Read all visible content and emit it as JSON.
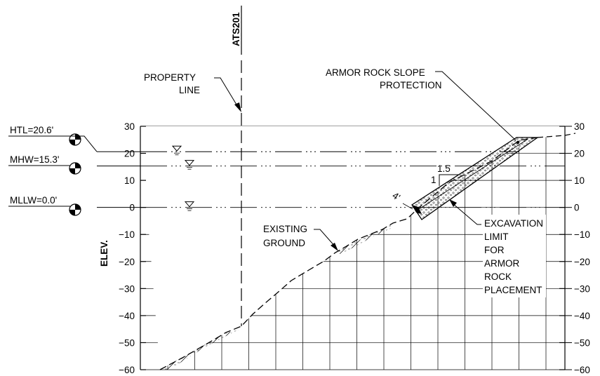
{
  "section_id": "ATS201",
  "axis": {
    "label": "ELEV.",
    "ticks": [
      30,
      20,
      10,
      0,
      -10,
      -20,
      -30,
      -40,
      -50,
      -60
    ],
    "tick_labels": [
      "30",
      "20",
      "10",
      "0",
      "−10",
      "−20",
      "−30",
      "−40",
      "−50",
      "−60"
    ],
    "min": -60,
    "max": 30
  },
  "water_levels": [
    {
      "label": "HTL=20.6'",
      "elev": 20.6
    },
    {
      "label": "MHW=15.3'",
      "elev": 15.3
    },
    {
      "label": "MLLW=0.0'",
      "elev": 0.0
    }
  ],
  "callouts": {
    "property_line": [
      "PROPERTY",
      "LINE"
    ],
    "armor_rock": [
      "ARMOR ROCK SLOPE",
      "PROTECTION"
    ],
    "existing_ground": [
      "EXISTING",
      "GROUND"
    ],
    "excavation": [
      "EXCAVATION",
      "LIMIT",
      "FOR",
      "ARMOR",
      "ROCK",
      "PLACEMENT"
    ]
  },
  "slope": {
    "run": "1.5",
    "rise": "1"
  },
  "thickness": "4'"
}
